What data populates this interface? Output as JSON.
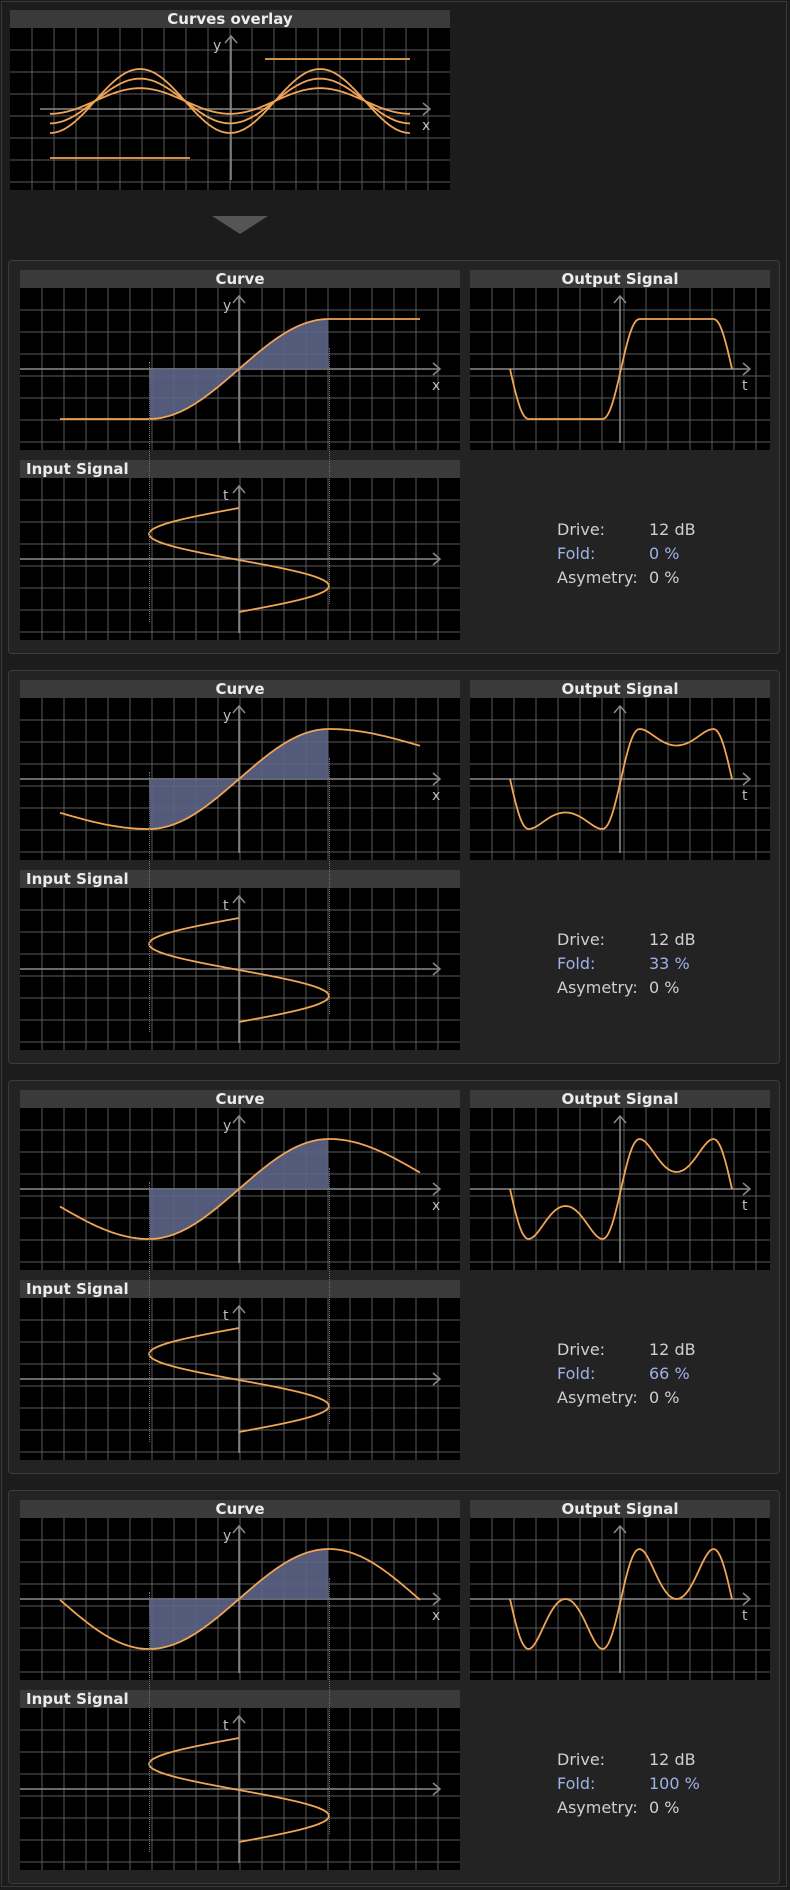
{
  "overlay": {
    "title": "Curves overlay",
    "axis_x": "x",
    "axis_y": "y",
    "curve_color": "#f0a455"
  },
  "labels": {
    "curve": "Curve",
    "output": "Output Signal",
    "input": "Input Signal",
    "x": "x",
    "y": "y",
    "t": "t",
    "drive": "Drive:",
    "fold": "Fold:",
    "asym": "Asymetry:"
  },
  "sections": [
    {
      "fold": 0,
      "drive_value": "12 dB",
      "fold_value": "0 %",
      "asym_value": "0 %"
    },
    {
      "fold": 0.33,
      "drive_value": "12 dB",
      "fold_value": "33 %",
      "asym_value": "0 %"
    },
    {
      "fold": 0.66,
      "drive_value": "12 dB",
      "fold_value": "66 %",
      "asym_value": "0 %"
    },
    {
      "fold": 1,
      "drive_value": "12 dB",
      "fold_value": "100 %",
      "asym_value": "0 %"
    }
  ],
  "colors": {
    "curve": "#f0a455",
    "fill": "#5d6487",
    "grid": "#5a5a5a",
    "axis": "#8a8a8a",
    "highlight_text": "#9fb2e8"
  }
}
